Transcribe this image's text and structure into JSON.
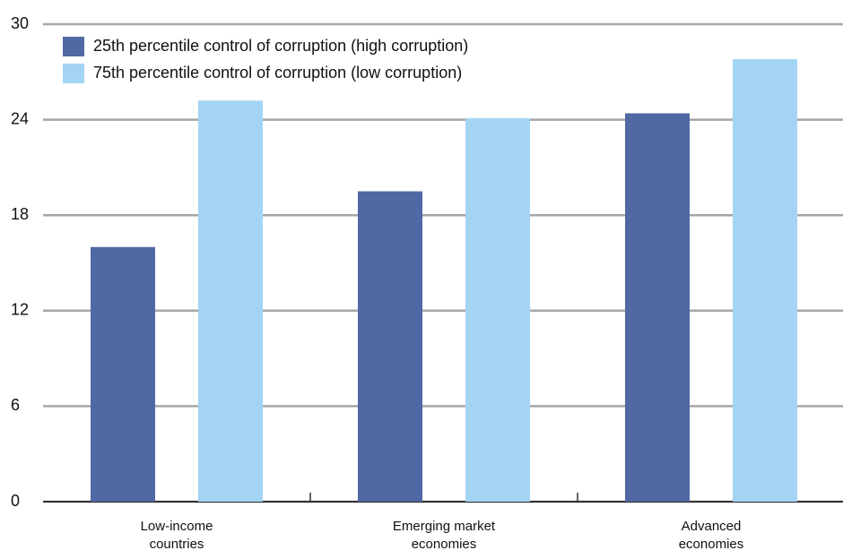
{
  "chart_data": {
    "type": "bar",
    "categories": [
      "Low-income countries",
      "Emerging market economies",
      "Advanced economies"
    ],
    "series": [
      {
        "name": "25th percentile control of corruption (high corruption)",
        "color": "#5068a3",
        "values": [
          16,
          19.5,
          24.4
        ]
      },
      {
        "name": "75th percentile control of corruption (low corruption)",
        "color": "#a4d4f4",
        "values": [
          25.2,
          24.1,
          27.8
        ]
      }
    ],
    "ylim": [
      0,
      30
    ],
    "yticks": [
      0,
      6,
      12,
      18,
      24,
      30
    ],
    "grid": true
  }
}
